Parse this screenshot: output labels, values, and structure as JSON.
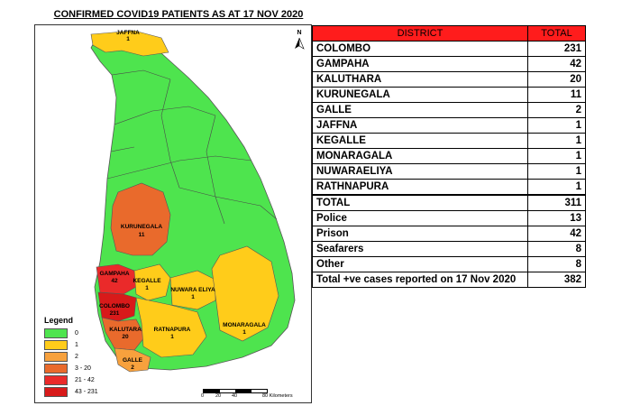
{
  "title": "CONFIRMED COVID19 PATIENTS AS AT 17 NOV 2020",
  "north_label": "N",
  "map": {
    "labels": [
      {
        "name": "JAFFNA",
        "value": "1"
      },
      {
        "name": "KURUNEGALA",
        "value": "11"
      },
      {
        "name": "GAMPAHA",
        "value": "42"
      },
      {
        "name": "KEGALLE",
        "value": "1"
      },
      {
        "name": "NUWARA ELIYA",
        "value": "1"
      },
      {
        "name": "COLOMBO",
        "value": "231"
      },
      {
        "name": "KALUTARA",
        "value": "20"
      },
      {
        "name": "RATNAPURA",
        "value": "1"
      },
      {
        "name": "MONARAGALA",
        "value": "1"
      },
      {
        "name": "GALLE",
        "value": "2"
      }
    ],
    "colors": {
      "zero": "#4ee44e",
      "one": "#ffcc1a",
      "two": "#f7a13d",
      "three_twenty": "#e96a2c",
      "twentyone_fortytwo": "#ea2a2a",
      "fortythree_231": "#d81a1a"
    }
  },
  "legend": {
    "title": "Legend",
    "items": [
      {
        "label": "0",
        "color": "#4ee44e"
      },
      {
        "label": "1",
        "color": "#ffcc1a"
      },
      {
        "label": "2",
        "color": "#f7a13d"
      },
      {
        "label": "3 - 20",
        "color": "#e96a2c"
      },
      {
        "label": "21 - 42",
        "color": "#ea2a2a"
      },
      {
        "label": "43 - 231",
        "color": "#d81a1a"
      }
    ]
  },
  "scale": {
    "ticks": [
      "0",
      "20",
      "40",
      "80 Kilometers"
    ]
  },
  "table": {
    "headers": [
      "DISTRICT",
      "TOTAL"
    ],
    "rows": [
      {
        "label": "COLOMBO",
        "value": "231"
      },
      {
        "label": "GAMPAHA",
        "value": "42"
      },
      {
        "label": "KALUTHARA",
        "value": "20"
      },
      {
        "label": "KURUNEGALA",
        "value": "11"
      },
      {
        "label": "GALLE",
        "value": "2"
      },
      {
        "label": "JAFFNA",
        "value": "1"
      },
      {
        "label": "KEGALLE",
        "value": "1"
      },
      {
        "label": "MONARAGALA",
        "value": "1"
      },
      {
        "label": "NUWARAELIYA",
        "value": "1"
      },
      {
        "label": "RATHNAPURA",
        "value": "1"
      },
      {
        "label": "TOTAL",
        "value": "311"
      },
      {
        "label": "Police",
        "value": "13"
      },
      {
        "label": "Prison",
        "value": "42"
      },
      {
        "label": "Seafarers",
        "value": "8"
      },
      {
        "label": "Other",
        "value": "8"
      },
      {
        "label": "Total +ve cases reported on 17 Nov 2020",
        "value": "382"
      }
    ]
  }
}
